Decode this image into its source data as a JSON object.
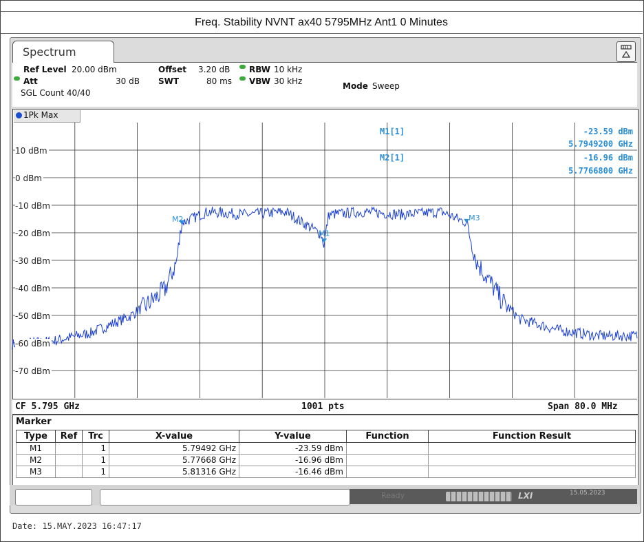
{
  "report_title": "Freq. Stability NVNT ax40 5795MHz Ant1 0 Minutes",
  "tab": {
    "label": "Spectrum"
  },
  "settings": {
    "ref_level_label": "Ref Level",
    "ref_level_value": "20.00 dBm",
    "offset_label": "Offset",
    "offset_value": "3.20 dB",
    "rbw_label": "RBW",
    "rbw_value": "10 kHz",
    "att_label": "Att",
    "att_value": "30 dB",
    "swt_label": "SWT",
    "swt_value": "80 ms",
    "vbw_label": "VBW",
    "vbw_value": "30 kHz",
    "mode_label": "Mode",
    "mode_value": "Sweep",
    "sgl_count": "SGL Count 40/40"
  },
  "trace_label": "1Pk Max",
  "y_axis_labels": [
    "10 dBm",
    "0 dBm",
    "-10 dBm",
    "-20 dBm",
    "-30 dBm",
    "-40 dBm",
    "-50 dBm",
    "-60 dBm",
    "-70 dBm"
  ],
  "marker_readout": {
    "m1_name": "M1[1]",
    "m1_level": "-23.59 dBm",
    "m1_freq": "5.7949200 GHz",
    "m2_name": "M2[1]",
    "m2_level": "-16.96 dBm",
    "m2_freq": "5.7766800 GHz"
  },
  "marker_tags": {
    "m1": "M1",
    "m2": "M2",
    "m3": "M3"
  },
  "footer": {
    "cf": "CF 5.795 GHz",
    "points": "1001 pts",
    "span": "Span 80.0 MHz"
  },
  "marker_table": {
    "title": "Marker",
    "headers": [
      "Type",
      "Ref",
      "Trc",
      "X-value",
      "Y-value",
      "Function",
      "Function Result"
    ],
    "rows": [
      {
        "type": "M1",
        "ref": "",
        "trc": "1",
        "x": "5.79492 GHz",
        "y": "-23.59 dBm",
        "function": "",
        "result": ""
      },
      {
        "type": "M2",
        "ref": "",
        "trc": "1",
        "x": "5.77668 GHz",
        "y": "-16.96 dBm",
        "function": "",
        "result": ""
      },
      {
        "type": "M3",
        "ref": "",
        "trc": "1",
        "x": "5.81316 GHz",
        "y": "-16.46 dBm",
        "function": "",
        "result": ""
      }
    ]
  },
  "statusbar": {
    "ready": "Ready",
    "date": "15.05.2023",
    "lxi": "LXI"
  },
  "date_footer": "Date: 15.MAY.2023  16:47:17",
  "colors": {
    "trace": "#1a3fd6",
    "marker": "#2a8fd8",
    "status_led": "#3caa3c"
  },
  "chart_data": {
    "type": "line",
    "title": "",
    "xlabel": "",
    "ylabel": "",
    "x_range_ghz": [
      5.755,
      5.835
    ],
    "ylim": [
      -80,
      20
    ],
    "grid": true,
    "series": [
      {
        "x": [
          5.755,
          5.76,
          5.765,
          5.77,
          5.772,
          5.7745,
          5.776,
          5.7767,
          5.78,
          5.785,
          5.79,
          5.7945,
          5.7949,
          5.7955,
          5.8,
          5.805,
          5.81,
          5.8132,
          5.8145,
          5.818,
          5.82,
          5.825,
          5.83,
          5.835
        ],
        "y": [
          -60,
          -59,
          -56,
          -50,
          -46,
          -40,
          -30,
          -16,
          -12,
          -13,
          -12,
          -20,
          -24,
          -13,
          -12,
          -13,
          -12,
          -16,
          -30,
          -45,
          -51,
          -55,
          -57,
          -57
        ]
      }
    ],
    "markers": [
      {
        "name": "M1",
        "x_ghz": 5.79492,
        "y_dbm": -23.59
      },
      {
        "name": "M2",
        "x_ghz": 5.77668,
        "y_dbm": -16.96
      },
      {
        "name": "M3",
        "x_ghz": 5.81316,
        "y_dbm": -16.46
      }
    ]
  }
}
